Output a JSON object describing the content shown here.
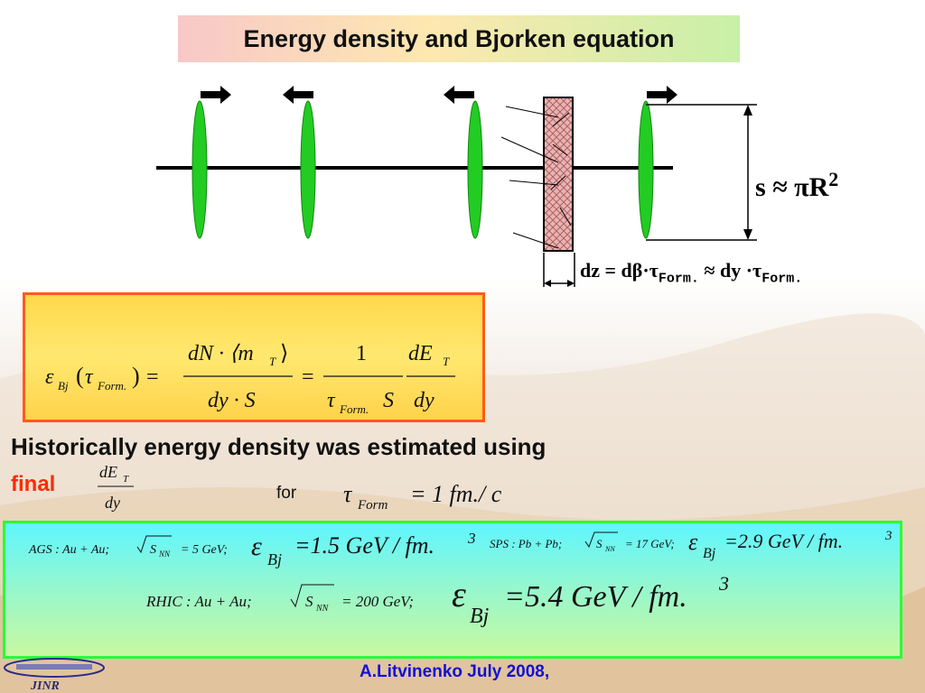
{
  "slide": {
    "title": "Energy density and Bjorken equation",
    "historically_line": "Historically energy density was estimated using",
    "final_word": "final",
    "for_word": "for",
    "author": "A.Litvinenko July  2008,",
    "logo_text": "JINR"
  },
  "diagram": {
    "area_formula": {
      "lhs": "s",
      "approx": "≈",
      "rhs": "πR",
      "power": "2"
    },
    "dz_formula": {
      "dz": "dz",
      "eq": "=",
      "dbeta": "dβ",
      "dot": "·",
      "tau": "τ",
      "form": "Form.",
      "approx": "≈",
      "dy": "dy"
    }
  },
  "bjorken": {
    "eps": "ε",
    "bj": "Bj",
    "tau": "τ",
    "form": "Form.",
    "num1": "dN · ⟨m",
    "t": "T",
    "close": "⟩",
    "den1": "dy · S",
    "one": "1",
    "den2s": "S",
    "num3": "dE",
    "den3": "dy"
  },
  "for_formula": {
    "tau": "τ",
    "form": "Form",
    "rhs": "= 1 fm./ c"
  },
  "fraction_final": {
    "num": "dE",
    "sub": "T",
    "den": "dy"
  },
  "results": {
    "ags": {
      "label": "AGS : Au + Au;",
      "snn": "S",
      "snn_sub": "NN",
      "energy": "= 5 GeV;",
      "eps": "ε",
      "bj": "Bj",
      "value": "=1.5 GeV / fm.",
      "power": "3"
    },
    "sps": {
      "label": "SPS : Pb + Pb;",
      "snn": "S",
      "snn_sub": "NN",
      "energy": "= 17 GeV;",
      "eps": "ε",
      "bj": "Bj",
      "value": "=2.9 GeV / fm.",
      "power": "3"
    },
    "rhic": {
      "label": "RHIC : Au + Au;",
      "snn": "S",
      "snn_sub": "NN",
      "energy": "= 200 GeV;",
      "eps": "ε",
      "bj": "Bj",
      "value": "=5.4 GeV / fm.",
      "power": "3"
    }
  }
}
